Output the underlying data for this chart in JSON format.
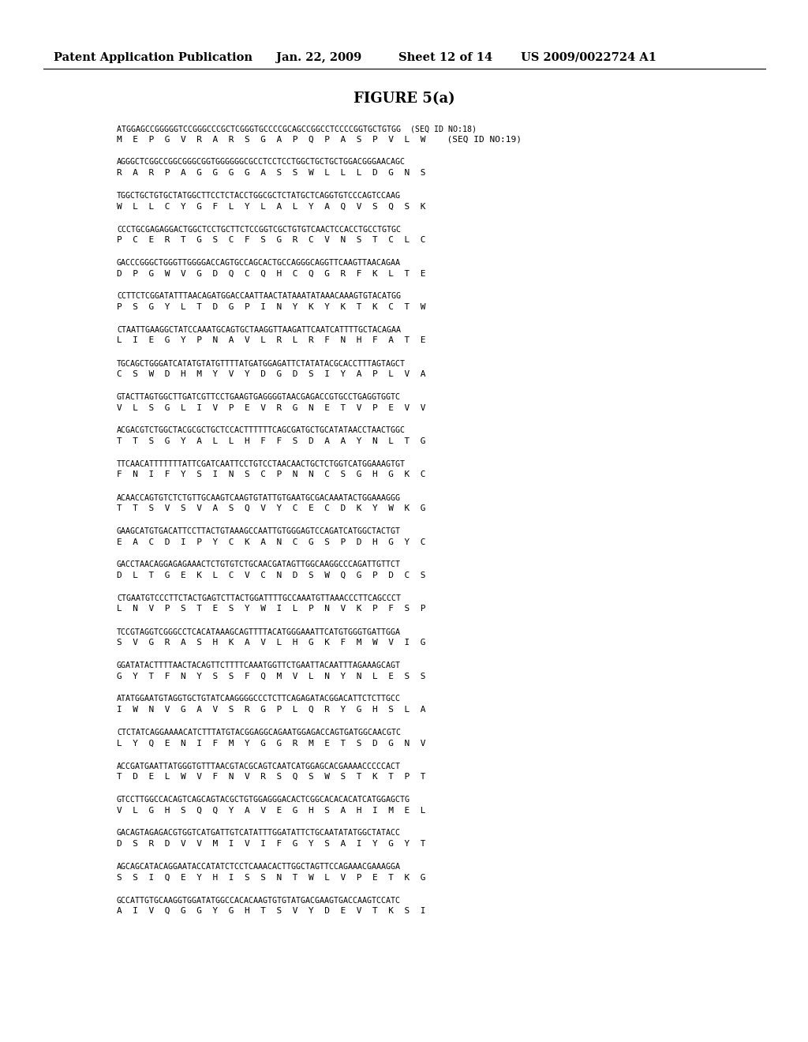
{
  "header_left": "Patent Application Publication",
  "header_date": "Jan. 22, 2009",
  "header_sheet": "Sheet 12 of 14",
  "header_right": "US 2009/0022724 A1",
  "figure_title": "FIGURE 5(a)",
  "background_color": "#ffffff",
  "text_color": "#000000",
  "sequences": [
    {
      "dna": "ATGGAGCCGGGGGTCCGGGCCCGCTCGGGTGCCCCGCAGCCGGCCTCCCCGGTGCTGTGG  (SEQ ID NO:18)",
      "aa": "M  E  P  G  V  R  A  R  S  G  A  P  Q  P  A  S  P  V  L  W    (SEQ ID NO:19)"
    },
    {
      "dna": "AGGGCTCGGCCGGCGGGCGGTGGGGGGCGCCTCCTCCTGGCTGCTGCTGGACGGGAACAGC",
      "aa": "R  A  R  P  A  G  G  G  G  A  S  S  W  L  L  L  D  G  N  S"
    },
    {
      "dna": "TGGCTGCTGTGCTATGGCTTCCTCTACCTGGCGCTCTATGCTCAGGTGTCCCAGTCCAAG",
      "aa": "W  L  L  C  Y  G  F  L  Y  L  A  L  Y  A  Q  V  S  Q  S  K"
    },
    {
      "dna": "CCCTGCGAGAGGACTGGCTCCTGCTTCTCCGGTCGCTGTGTCAACTCCACCTGCCTGTGC",
      "aa": "P  C  E  R  T  G  S  C  F  S  G  R  C  V  N  S  T  C  L  C"
    },
    {
      "dna": "GACCCGGGCTGGGTTGGGGACCAGTGCCAGCACTGCCAGGGCAGGTTCAAGTTAACAGAA",
      "aa": "D  P  G  W  V  G  D  Q  C  Q  H  C  Q  G  R  F  K  L  T  E"
    },
    {
      "dna": "CCTTCTCGGATATTTAACAGATGGACCAATTAACTATAAATATAAACAAAGTGTACATGG",
      "aa": "P  S  G  Y  L  T  D  G  P  I  N  Y  K  Y  K  T  K  C  T  W"
    },
    {
      "dna": "CTAATTGAAGGCTATCCAAATGCAGTGCTAAGGTTAAGATTCAATCATTTTGCTACAGAA",
      "aa": "L  I  E  G  Y  P  N  A  V  L  R  L  R  F  N  H  F  A  T  E"
    },
    {
      "dna": "TGCAGCTGGGATCATATGTATGTTTTATGATGGAGATTCTATATACGCACCTTTAGTAGCT",
      "aa": "C  S  W  D  H  M  Y  V  Y  D  G  D  S  I  Y  A  P  L  V  A"
    },
    {
      "dna": "GTACTTAGTGGCTTGATCGTTCCTGAAGTGAGGGGTAACGAGACCGTGCCTGAGGTGGTC",
      "aa": "V  L  S  G  L  I  V  P  E  V  R  G  N  E  T  V  P  E  V  V"
    },
    {
      "dna": "ACGACGTCTGGCTACGCGCTGCTCCACTTTTTTCAGCGATGCTGCATATAACCTAACTGGC",
      "aa": "T  T  S  G  Y  A  L  L  H  F  F  S  D  A  A  Y  N  L  T  G"
    },
    {
      "dna": "TTCAACATTTTTTTATTCGATCAATTCCTGTCCTAACAACTGCTCTGGTCATGGAAAGTGT",
      "aa": "F  N  I  F  Y  S  I  N  S  C  P  N  N  C  S  G  H  G  K  C"
    },
    {
      "dna": "ACAACCAGTGTCTCTGTTGCAAGTCAAGTGTATTGTGAATGCGACAAATACTGGAAAGGG",
      "aa": "T  T  S  V  S  V  A  S  Q  V  Y  C  E  C  D  K  Y  W  K  G"
    },
    {
      "dna": "GAAGCATGTGACATTCCTTACTGTAAAGCCAATTGTGGGAGTCCAGATCATGGCTACTGT",
      "aa": "E  A  C  D  I  P  Y  C  K  A  N  C  G  S  P  D  H  G  Y  C"
    },
    {
      "dna": "GACCTAACAGGAGAGAAACTCTGTGTCTGCAACGATAGTTGGCAAGGCCCAGATTGTTCT",
      "aa": "D  L  T  G  E  K  L  C  V  C  N  D  S  W  Q  G  P  D  C  S"
    },
    {
      "dna": "CTGAATGTCCCTTCTACTGAGTCTTACTGGATTTTGCCAAATGTTAAACCCTTCAGCCCT",
      "aa": "L  N  V  P  S  T  E  S  Y  W  I  L  P  N  V  K  P  F  S  P"
    },
    {
      "dna": "TCCGTAGGTCGGGCCTCACATAAAGCAGTTTTACATGGGAAATTCATGTGGGTGATTGGA",
      "aa": "S  V  G  R  A  S  H  K  A  V  L  H  G  K  F  M  W  V  I  G"
    },
    {
      "dna": "GGATATACTTTTAACTACAGTTCTTTTCAAATGGTTCTGAATTACAATTTAGAAAGCAGT",
      "aa": "G  Y  T  F  N  Y  S  S  F  Q  M  V  L  N  Y  N  L  E  S  S"
    },
    {
      "dna": "ATATGGAATGTAGGTGCTGTATCAAGGGGCCCTCTTCAGAGATACGGACATTCTCTTGCC",
      "aa": "I  W  N  V  G  A  V  S  R  G  P  L  Q  R  Y  G  H  S  L  A"
    },
    {
      "dna": "CTCTATCAGGAAAACATCTTTATGTACGGAGGCAGAATGGAGACCAGTGATGGCAACGTC",
      "aa": "L  Y  Q  E  N  I  F  M  Y  G  G  R  M  E  T  S  D  G  N  V"
    },
    {
      "dna": "ACCGATGAATTATGGGTGTTTAACGTACGCAGTCAATCATGGAGCACGAAAACCCCCACT",
      "aa": "T  D  E  L  W  V  F  N  V  R  S  Q  S  W  S  T  K  T  P  T"
    },
    {
      "dna": "GTCCTTGGCCACAGTCAGCAGTACGCTGTGGAGGGACACTCGGCACACACATCATGGAGCTG",
      "aa": "V  L  G  H  S  Q  Q  Y  A  V  E  G  H  S  A  H  I  M  E  L"
    },
    {
      "dna": "GACAGTAGAGACGTGGTCATGATTGTCATATTTGGATATTCTGCAATATATGGCTATACC",
      "aa": "D  S  R  D  V  V  M  I  V  I  F  G  Y  S  A  I  Y  G  Y  T"
    },
    {
      "dna": "AGCAGCATACAGGAATACCATATCTCCTCAAACACTTGGCTAGTTCCAGAAACGAAAGGA",
      "aa": "S  S  I  Q  E  Y  H  I  S  S  N  T  W  L  V  P  E  T  K  G"
    },
    {
      "dna": "GCCATTGTGCAAGGTGGATATGGCCACACAAGTGTGTATGACGAAGTGACCAAGTCCATC",
      "aa": "A  I  V  Q  G  G  Y  G  H  T  S  V  Y  D  E  V  T  K  S  I"
    }
  ]
}
